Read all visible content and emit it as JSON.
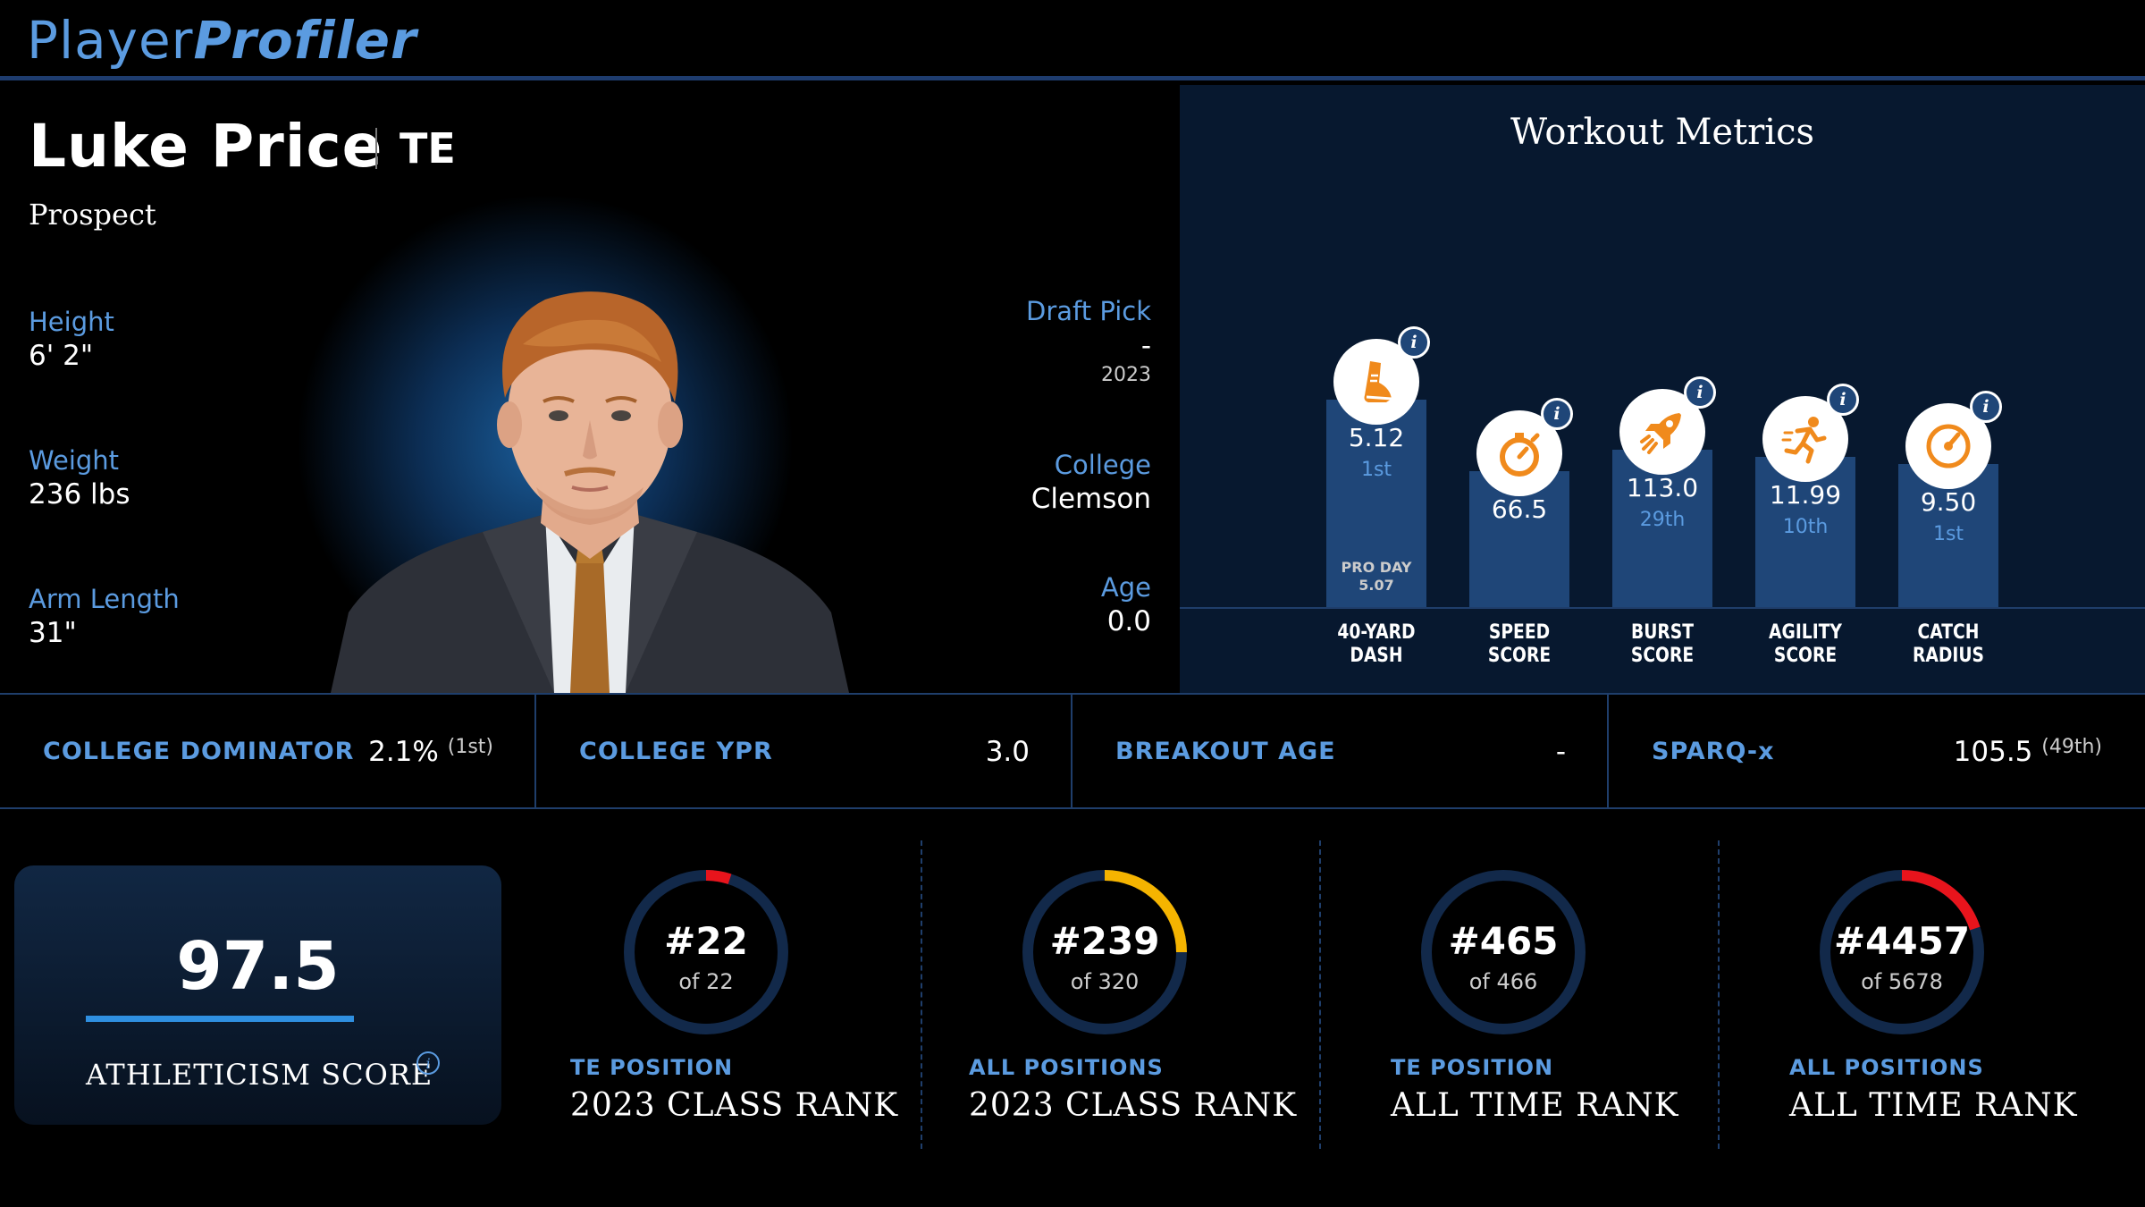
{
  "header": {
    "logo_part1": "Player",
    "logo_part2": "Profiler"
  },
  "player": {
    "name": "Luke Price",
    "position": "TE",
    "status": "Prospect",
    "height_label": "Height",
    "height": "6' 2\"",
    "weight_label": "Weight",
    "weight": "236 lbs",
    "arm_label": "Arm Length",
    "arm": "31\"",
    "draft_label": "Draft Pick",
    "draft": "-",
    "draft_year": "2023",
    "college_label": "College",
    "college": "Clemson",
    "age_label": "Age",
    "age": "0.0"
  },
  "workout": {
    "title": "Workout Metrics",
    "metrics": [
      {
        "icon": "shoe-icon",
        "value": "5.12",
        "rank": "1st",
        "pro_day_label": "PRO DAY",
        "pro_day": "5.07",
        "label1": "40-YARD",
        "label2": "DASH",
        "level": 0.58
      },
      {
        "icon": "stopwatch-icon",
        "value": "66.5",
        "rank": "",
        "label1": "SPEED",
        "label2": "SCORE",
        "level": 0.38
      },
      {
        "icon": "rocket-icon",
        "value": "113.0",
        "rank": "29th",
        "label1": "BURST",
        "label2": "SCORE",
        "level": 0.44
      },
      {
        "icon": "runner-icon",
        "value": "11.99",
        "rank": "10th",
        "label1": "AGILITY",
        "label2": "SCORE",
        "level": 0.42
      },
      {
        "icon": "gauge-icon",
        "value": "9.50",
        "rank": "1st",
        "label1": "CATCH",
        "label2": "RADIUS",
        "level": 0.4
      }
    ]
  },
  "strip": [
    {
      "label": "COLLEGE DOMINATOR",
      "value": "2.1%",
      "sub": "(1st)"
    },
    {
      "label": "COLLEGE YPR",
      "value": "3.0",
      "sub": ""
    },
    {
      "label": "BREAKOUT AGE",
      "value": "-",
      "sub": ""
    },
    {
      "label": "SPARQ-x",
      "value": "105.5",
      "sub": "(49th)"
    }
  ],
  "athleticism": {
    "score": "97.5",
    "label": "ATHLETICISM SCORE"
  },
  "ranks": [
    {
      "rank": "#22",
      "of": "of 22",
      "sub": "TE POSITION",
      "main": "2023 CLASS RANK",
      "fraction": 0.05,
      "color": "#e8141c"
    },
    {
      "rank": "#239",
      "of": "of 320",
      "sub": "ALL POSITIONS",
      "main": "2023 CLASS RANK",
      "fraction": 0.25,
      "color": "#f5b400"
    },
    {
      "rank": "#465",
      "of": "of 466",
      "sub": "TE POSITION",
      "main": "ALL TIME RANK",
      "fraction": 0.0,
      "color": "#e8141c"
    },
    {
      "rank": "#4457",
      "of": "of 5678",
      "sub": "ALL POSITIONS",
      "main": "ALL TIME RANK",
      "fraction": 0.2,
      "color": "#e8141c"
    }
  ],
  "colors": {
    "accent": "#5b9be0",
    "bar": "#1f4678",
    "icon_orange": "#f08a1c",
    "ring_track": "#12294a"
  }
}
